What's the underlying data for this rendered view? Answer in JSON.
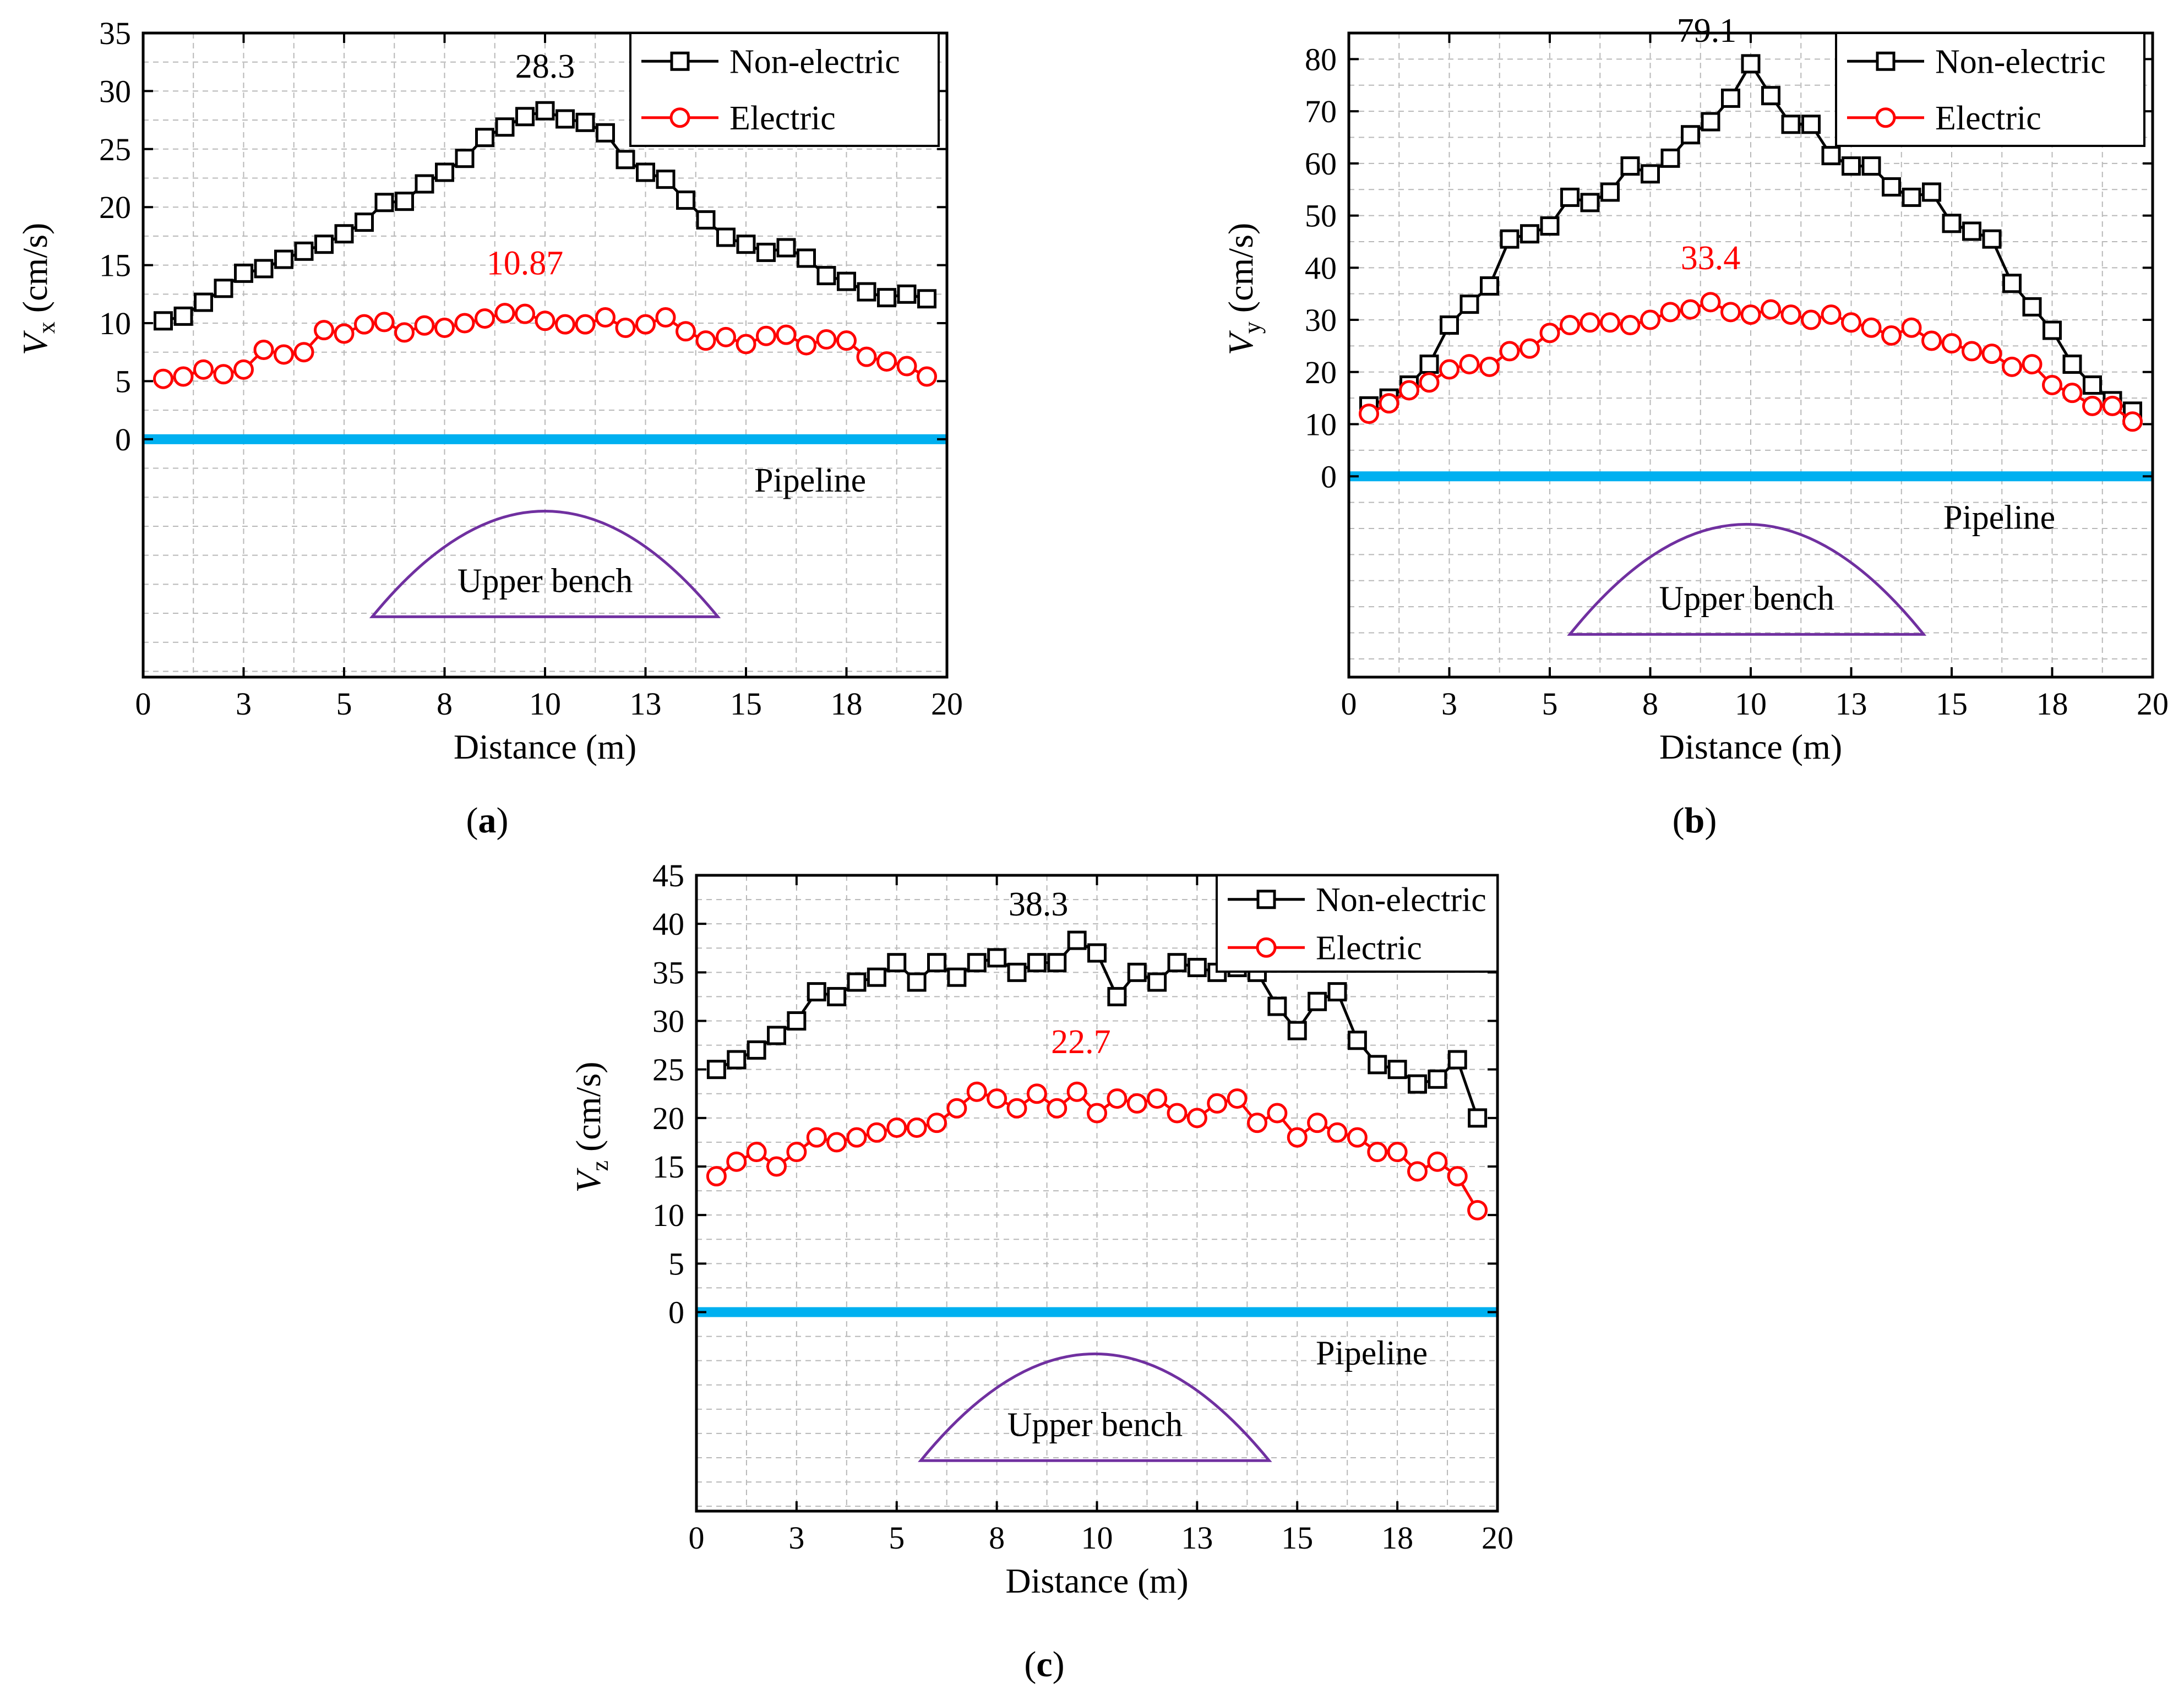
{
  "chart_data": [
    {
      "type": "line",
      "panel_label": "a",
      "xlabel": "Distance (m)",
      "ylabel_symbol": "V",
      "ylabel_subscript": "x",
      "ylabel_unit": " (cm/s)",
      "xlim": [
        0,
        20
      ],
      "x_ticks": [
        "0",
        "3",
        "5",
        "8",
        "10",
        "13",
        "15",
        "18",
        "20"
      ],
      "ylim": [
        -20.5,
        35
      ],
      "y_ticks": [
        0,
        5,
        10,
        15,
        20,
        25,
        30,
        35
      ],
      "grid": true,
      "legend_position": "top-right",
      "x": [
        0.5,
        1,
        1.5,
        2,
        2.5,
        3,
        3.5,
        4,
        4.5,
        5,
        5.5,
        6,
        6.5,
        7,
        7.5,
        8,
        8.5,
        9,
        9.5,
        10,
        10.5,
        11,
        11.5,
        12,
        12.5,
        13,
        13.5,
        14,
        14.5,
        15,
        15.5,
        16,
        16.5,
        17,
        17.5,
        18,
        18.5,
        19,
        19.5
      ],
      "series": [
        {
          "name": "Non-electric",
          "color": "#000000",
          "marker": "square",
          "values": [
            10.2,
            10.6,
            11.8,
            13.0,
            14.3,
            14.7,
            15.5,
            16.2,
            16.8,
            17.7,
            18.7,
            20.4,
            20.5,
            22.0,
            23.0,
            24.2,
            26.0,
            26.9,
            27.8,
            28.3,
            27.6,
            27.3,
            26.4,
            24.1,
            23.0,
            22.4,
            20.6,
            18.9,
            17.4,
            16.8,
            16.1,
            16.5,
            15.6,
            14.1,
            13.6,
            12.7,
            12.2,
            12.5,
            12.1
          ]
        },
        {
          "name": "Electric",
          "color": "#ff0000",
          "marker": "circle",
          "values": [
            5.2,
            5.4,
            6.0,
            5.6,
            6.0,
            7.7,
            7.3,
            7.5,
            9.4,
            9.1,
            9.9,
            10.1,
            9.2,
            9.8,
            9.6,
            10.0,
            10.4,
            10.87,
            10.8,
            10.2,
            9.9,
            9.9,
            10.5,
            9.6,
            9.9,
            10.5,
            9.3,
            8.5,
            8.8,
            8.2,
            8.9,
            9.0,
            8.1,
            8.6,
            8.5,
            7.1,
            6.7,
            6.3,
            5.4
          ]
        }
      ],
      "annotations": [
        {
          "text": "28.3",
          "x": 10.0,
          "y": 28.3,
          "color": "#000000"
        },
        {
          "text": "10.87",
          "x": 9.5,
          "y": 10.87,
          "color": "#ff0000"
        }
      ],
      "pipeline": {
        "label": "Pipeline",
        "y": 0,
        "color": "#00b0f0"
      },
      "bench": {
        "label": "Upper bench",
        "x_start": 5.7,
        "x_end": 14.3,
        "base_y": -15.3,
        "top_y": -6.2,
        "color": "#7030a0"
      }
    },
    {
      "type": "line",
      "panel_label": "b",
      "xlabel": "Distance (m)",
      "ylabel_symbol": "V",
      "ylabel_subscript": "y",
      "ylabel_unit": " (cm/s)",
      "xlim": [
        0,
        20
      ],
      "x_ticks": [
        "0",
        "3",
        "5",
        "8",
        "10",
        "13",
        "15",
        "18",
        "20"
      ],
      "ylim": [
        -38.5,
        85
      ],
      "y_ticks": [
        0,
        10,
        20,
        30,
        40,
        50,
        60,
        70,
        80
      ],
      "grid": true,
      "legend_position": "top-right",
      "x": [
        0.5,
        1,
        1.5,
        2,
        2.5,
        3,
        3.5,
        4,
        4.5,
        5,
        5.5,
        6,
        6.5,
        7,
        7.5,
        8,
        8.5,
        9,
        9.5,
        10,
        10.5,
        11,
        11.5,
        12,
        12.5,
        13,
        13.5,
        14,
        14.5,
        15,
        15.5,
        16,
        16.5,
        17,
        17.5,
        18,
        18.5,
        19,
        19.5
      ],
      "series": [
        {
          "name": "Non-electric",
          "color": "#000000",
          "marker": "square",
          "values": [
            13.5,
            15.0,
            17.5,
            21.5,
            29.0,
            33.0,
            36.5,
            45.5,
            46.5,
            48.0,
            53.5,
            52.5,
            54.5,
            59.5,
            58.0,
            61.0,
            65.5,
            68.0,
            72.5,
            79.1,
            73.0,
            67.5,
            67.5,
            61.5,
            59.5,
            59.5,
            55.5,
            53.5,
            54.5,
            48.5,
            47.0,
            45.5,
            37.0,
            32.5,
            28.0,
            21.5,
            17.5,
            14.5,
            12.5
          ]
        },
        {
          "name": "Electric",
          "color": "#ff0000",
          "marker": "circle",
          "values": [
            12.0,
            14.0,
            16.5,
            18.0,
            20.5,
            21.5,
            21.0,
            24.0,
            24.5,
            27.5,
            29.0,
            29.5,
            29.5,
            29.0,
            30.0,
            31.5,
            32.0,
            33.4,
            31.5,
            31.0,
            32.0,
            31.0,
            30.0,
            31.0,
            29.5,
            28.5,
            27.0,
            28.5,
            26.0,
            25.5,
            24.0,
            23.5,
            21.0,
            21.5,
            17.5,
            16.0,
            13.5,
            13.5,
            10.5
          ]
        }
      ],
      "annotations": [
        {
          "text": "79.1",
          "x": 10.0,
          "y": 79.1,
          "color": "#000000"
        },
        {
          "text": "33.4",
          "x": 9.0,
          "y": 33.4,
          "color": "#ff0000"
        }
      ],
      "pipeline": {
        "label": "Pipeline",
        "y": 0,
        "color": "#00b0f0"
      },
      "bench": {
        "label": "Upper bench",
        "x_start": 5.5,
        "x_end": 14.3,
        "base_y": -30.3,
        "top_y": -9.2,
        "color": "#7030a0"
      }
    },
    {
      "type": "line",
      "panel_label": "c",
      "xlabel": "Distance (m)",
      "ylabel_symbol": "V",
      "ylabel_subscript": "z",
      "ylabel_unit": " (cm/s)",
      "xlim": [
        0,
        20
      ],
      "x_ticks": [
        "0",
        "3",
        "5",
        "8",
        "10",
        "13",
        "15",
        "18",
        "20"
      ],
      "ylim": [
        -20.5,
        45
      ],
      "y_ticks": [
        0,
        5,
        10,
        15,
        20,
        25,
        30,
        35,
        40,
        45
      ],
      "grid": true,
      "legend_position": "top-right",
      "x": [
        0.5,
        1,
        1.5,
        2,
        2.5,
        3,
        3.5,
        4,
        4.5,
        5,
        5.5,
        6,
        6.5,
        7,
        7.5,
        8,
        8.5,
        9,
        9.5,
        10,
        10.5,
        11,
        11.5,
        12,
        12.5,
        13,
        13.5,
        14,
        14.5,
        15,
        15.5,
        16,
        16.5,
        17,
        17.5,
        18,
        18.5,
        19,
        19.5
      ],
      "series": [
        {
          "name": "Non-electric",
          "color": "#000000",
          "marker": "square",
          "values": [
            25.0,
            26.0,
            27.0,
            28.5,
            30.0,
            33.0,
            32.5,
            34.0,
            34.5,
            36.0,
            34.0,
            36.0,
            34.5,
            36.0,
            36.5,
            35.0,
            36.0,
            36.0,
            38.3,
            37.0,
            32.5,
            35.0,
            34.0,
            36.0,
            35.5,
            35.0,
            35.5,
            35.0,
            31.5,
            29.0,
            32.0,
            33.0,
            28.0,
            25.5,
            25.0,
            23.5,
            24.0,
            26.0,
            20.0
          ]
        },
        {
          "name": "Electric",
          "color": "#ff0000",
          "marker": "circle",
          "values": [
            14.0,
            15.5,
            16.5,
            15.0,
            16.5,
            18.0,
            17.5,
            18.0,
            18.5,
            19.0,
            19.0,
            19.5,
            21.0,
            22.7,
            22.0,
            21.0,
            22.5,
            21.0,
            22.7,
            20.5,
            22.0,
            21.5,
            22.0,
            20.5,
            20.0,
            21.5,
            22.0,
            19.5,
            20.5,
            18.0,
            19.5,
            18.5,
            18.0,
            16.5,
            16.5,
            14.5,
            15.5,
            14.0,
            10.5
          ]
        }
      ],
      "annotations": [
        {
          "text": "38.3",
          "x": 9.5,
          "y": 38.3,
          "color": "#000000"
        },
        {
          "text": "22.7",
          "x": 8.5,
          "y": 22.7,
          "color": "#ff0000"
        }
      ],
      "pipeline": {
        "label": "Pipeline",
        "y": 0,
        "color": "#00b0f0"
      },
      "bench": {
        "label": "Upper bench",
        "x_start": 5.6,
        "x_end": 14.3,
        "base_y": -15.3,
        "top_y": -4.3,
        "color": "#7030a0"
      }
    }
  ]
}
